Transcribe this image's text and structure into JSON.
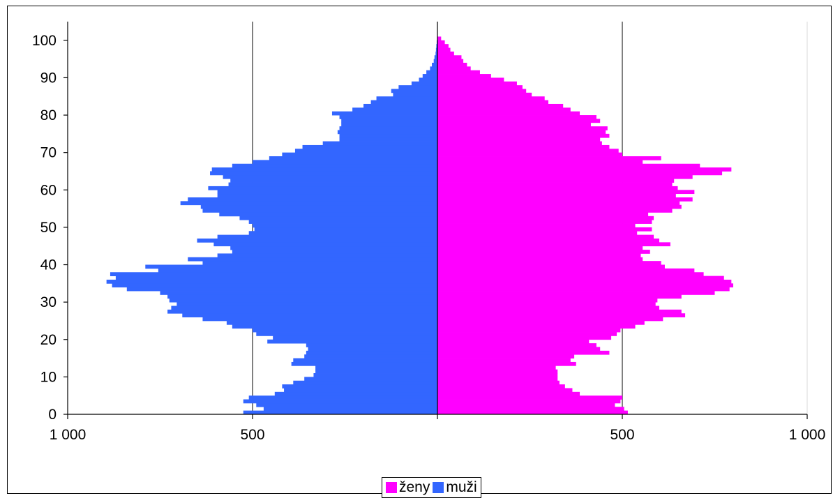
{
  "chart_data": {
    "type": "bar",
    "orientation": "horizontal",
    "subtype": "population-pyramid",
    "title": "",
    "xlabel": "",
    "ylabel": "",
    "xlim": [
      -1000,
      1000
    ],
    "ylim": [
      0,
      105
    ],
    "x_tick_values": [
      -1000,
      -500,
      0,
      500,
      1000
    ],
    "x_tick_labels": [
      "1 000",
      "500",
      "",
      "500",
      "1 000"
    ],
    "y_tick_values": [
      0,
      10,
      20,
      30,
      40,
      50,
      60,
      70,
      80,
      90,
      100
    ],
    "y_tick_labels": [
      "0",
      "10",
      "20",
      "30",
      "40",
      "50",
      "60",
      "70",
      "80",
      "90",
      "100"
    ],
    "grid": "vertical",
    "legend_position": "bottom",
    "categories": [
      0,
      1,
      2,
      3,
      4,
      5,
      6,
      7,
      8,
      9,
      10,
      11,
      12,
      13,
      14,
      15,
      16,
      17,
      18,
      19,
      20,
      21,
      22,
      23,
      24,
      25,
      26,
      27,
      28,
      29,
      30,
      31,
      32,
      33,
      34,
      35,
      36,
      37,
      38,
      39,
      40,
      41,
      42,
      43,
      44,
      45,
      46,
      47,
      48,
      49,
      50,
      51,
      52,
      53,
      54,
      55,
      56,
      57,
      58,
      59,
      60,
      61,
      62,
      63,
      64,
      65,
      66,
      67,
      68,
      69,
      70,
      71,
      72,
      73,
      74,
      75,
      76,
      77,
      78,
      79,
      80,
      81,
      82,
      83,
      84,
      85,
      86,
      87,
      88,
      89,
      90,
      91,
      92,
      93,
      94,
      95,
      96,
      97,
      98,
      99,
      100
    ],
    "series": [
      {
        "name": "ženy",
        "color": "#ff00ff",
        "values": [
          515,
          505,
          480,
          495,
          500,
          385,
          365,
          345,
          330,
          325,
          325,
          325,
          320,
          375,
          360,
          370,
          465,
          440,
          430,
          410,
          470,
          485,
          495,
          535,
          560,
          610,
          670,
          660,
          600,
          590,
          595,
          660,
          750,
          790,
          800,
          795,
          775,
          720,
          695,
          615,
          605,
          555,
          550,
          575,
          555,
          630,
          600,
          585,
          540,
          580,
          535,
          580,
          585,
          570,
          635,
          660,
          655,
          690,
          645,
          695,
          650,
          635,
          640,
          690,
          770,
          795,
          710,
          555,
          605,
          500,
          490,
          465,
          445,
          440,
          465,
          455,
          460,
          415,
          440,
          430,
          385,
          360,
          340,
          300,
          290,
          255,
          240,
          230,
          215,
          180,
          145,
          115,
          90,
          80,
          70,
          65,
          45,
          35,
          30,
          20,
          10
        ]
      },
      {
        "name": "muži",
        "color": "#3366ff",
        "values": [
          -525,
          -470,
          -490,
          -525,
          -510,
          -440,
          -415,
          -420,
          -390,
          -360,
          -335,
          -330,
          -330,
          -395,
          -390,
          -360,
          -355,
          -350,
          -355,
          -460,
          -445,
          -490,
          -500,
          -555,
          -570,
          -635,
          -690,
          -730,
          -720,
          -705,
          -725,
          -730,
          -750,
          -840,
          -880,
          -895,
          -870,
          -885,
          -755,
          -790,
          -635,
          -675,
          -595,
          -555,
          -560,
          -605,
          -650,
          -595,
          -510,
          -495,
          -500,
          -510,
          -535,
          -590,
          -635,
          -640,
          -695,
          -675,
          -595,
          -595,
          -620,
          -565,
          -560,
          -580,
          -615,
          -610,
          -555,
          -500,
          -455,
          -420,
          -385,
          -365,
          -310,
          -265,
          -265,
          -270,
          -265,
          -260,
          -260,
          -265,
          -285,
          -230,
          -200,
          -180,
          -165,
          -120,
          -125,
          -105,
          -70,
          -50,
          -40,
          -30,
          -20,
          -15,
          -10,
          -8,
          -5,
          -4,
          -3,
          -2,
          -1
        ]
      }
    ]
  },
  "legend": {
    "items": [
      {
        "label": "ženy",
        "color": "#ff00ff"
      },
      {
        "label": "muži",
        "color": "#3366ff"
      }
    ]
  }
}
